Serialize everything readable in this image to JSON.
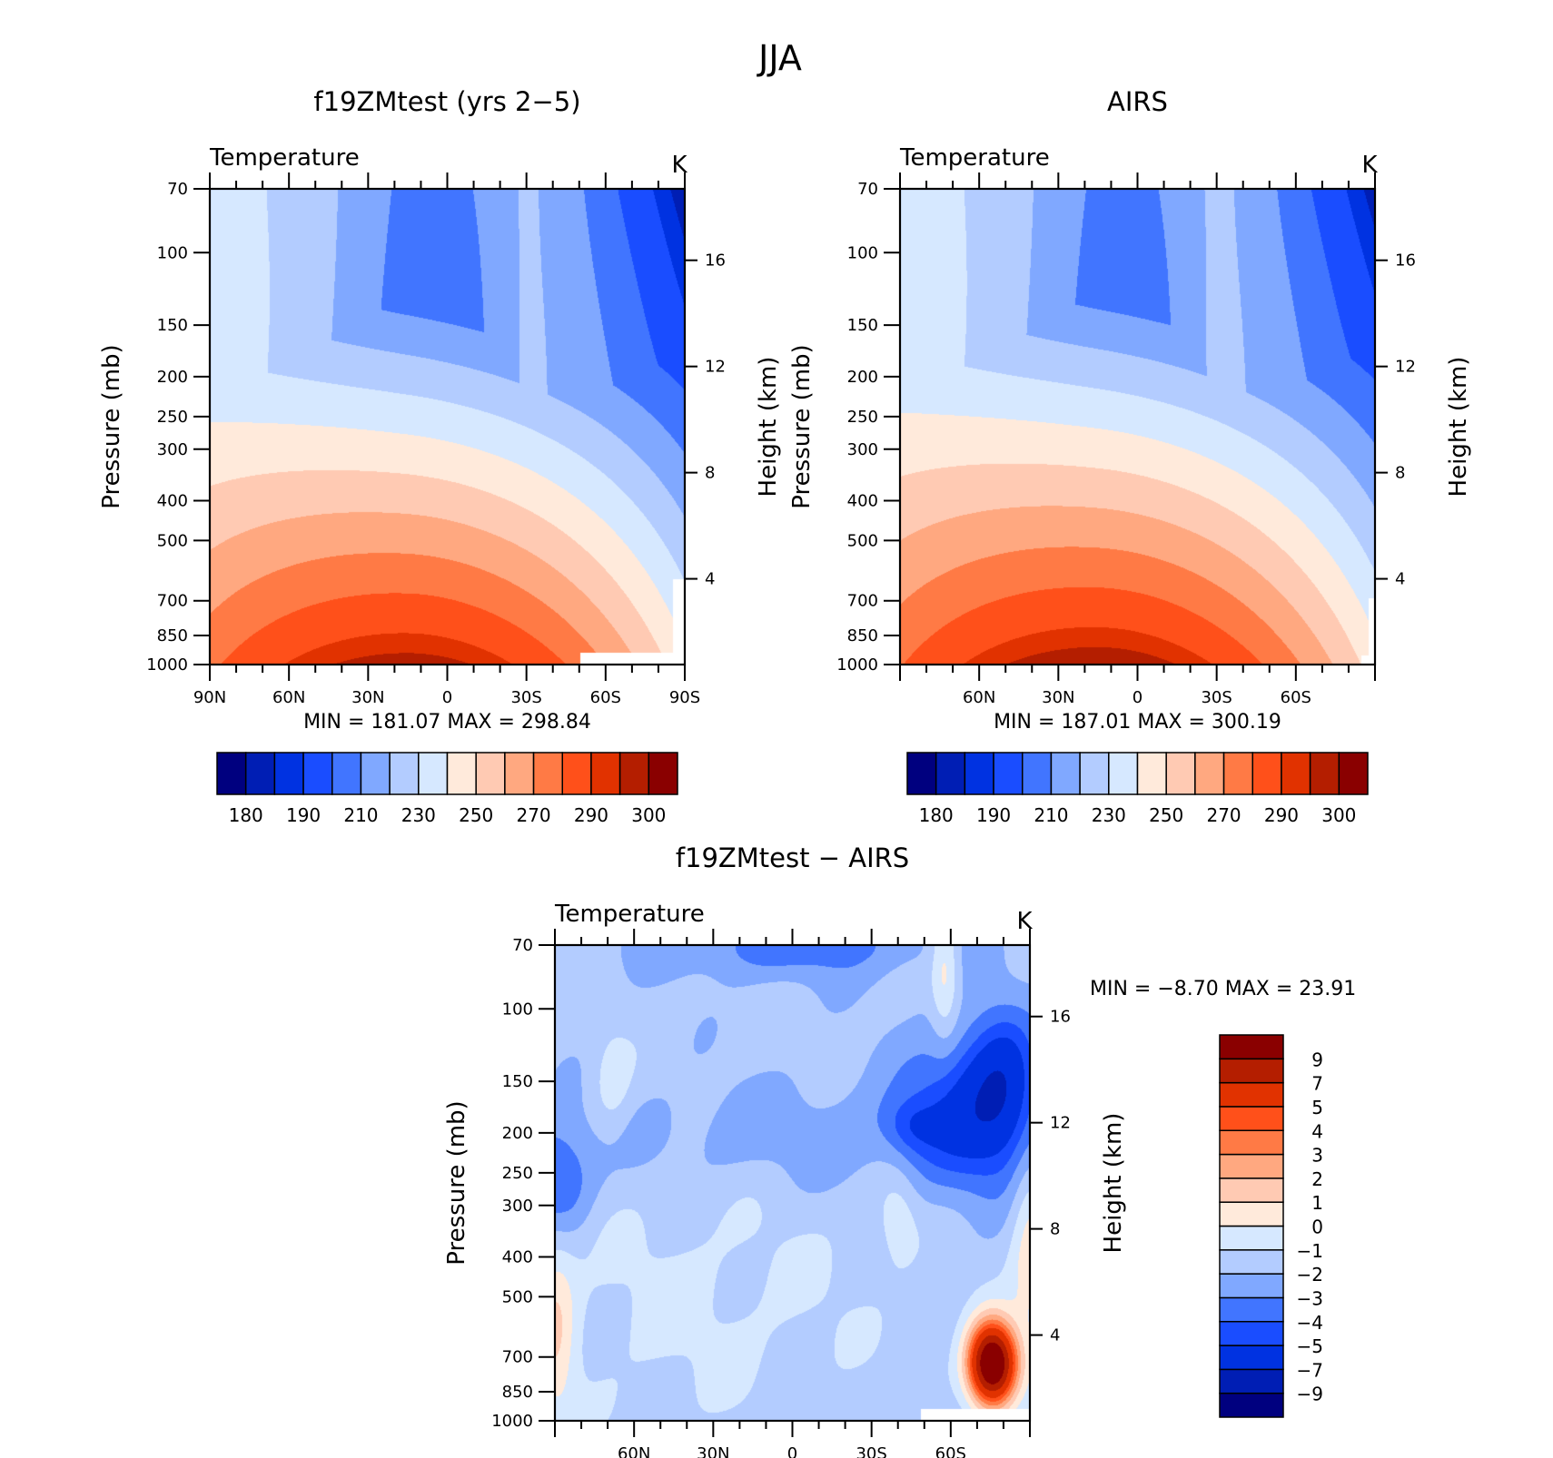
{
  "chart_data": {
    "type": "heatmap",
    "title": "JJA",
    "panels": [
      {
        "id": "model",
        "title": "f19ZMtest (yrs 2−5)",
        "left_string": "Temperature",
        "right_string": "K",
        "ylabel": "Pressure (mb)",
        "y2label": "Height (km)",
        "pressure_ticks": [
          70,
          100,
          150,
          200,
          250,
          300,
          400,
          500,
          700,
          850,
          1000
        ],
        "height_ticks": [
          4,
          8,
          12,
          16
        ],
        "lat_ticks": [
          "90N",
          "60N",
          "30N",
          "0",
          "30S",
          "60S",
          "90S"
        ],
        "stats": "MIN =  181.07   MAX =  298.84",
        "offset": 0
      },
      {
        "id": "obs",
        "title": "AIRS",
        "left_string": "Temperature",
        "right_string": "K",
        "ylabel": "Pressure (mb)",
        "y2label": "Height (km)",
        "pressure_ticks": [
          70,
          100,
          150,
          200,
          250,
          300,
          400,
          500,
          700,
          850,
          1000
        ],
        "height_ticks": [
          4,
          8,
          12,
          16
        ],
        "lat_ticks": [
          "",
          "60N",
          "30N",
          "0",
          "30S",
          "60S",
          ""
        ],
        "stats": "MIN =  187.01   MAX =  300.19",
        "offset": 1.5
      },
      {
        "id": "diff",
        "title": "f19ZMtest − AIRS",
        "left_string": "Temperature",
        "right_string": "K",
        "ylabel": "Pressure (mb)",
        "y2label": "Height (km)",
        "pressure_ticks": [
          70,
          100,
          150,
          200,
          250,
          300,
          400,
          500,
          700,
          850,
          1000
        ],
        "height_ticks": [
          4,
          8,
          12,
          16
        ],
        "lat_ticks": [
          "",
          "60N",
          "30N",
          "0",
          "30S",
          "60S",
          ""
        ],
        "stats": "MIN =   −8.70   MAX =   23.91"
      }
    ],
    "abs_levels": [
      180,
      185,
      190,
      200,
      210,
      220,
      230,
      240,
      250,
      260,
      270,
      280,
      290,
      295,
      300
    ],
    "abs_labels": [
      "180",
      "190",
      "210",
      "230",
      "250",
      "270",
      "290",
      "300"
    ],
    "diff_levels": [
      -9,
      -7,
      -5,
      -4,
      -3,
      -2,
      -1,
      0,
      1,
      2,
      3,
      4,
      5,
      7,
      9
    ],
    "diff_labels": [
      "−9",
      "−7",
      "−5",
      "−4",
      "−3",
      "−2",
      "−1",
      "0",
      "1",
      "2",
      "3",
      "4",
      "5",
      "7",
      "9"
    ],
    "colors": [
      "#00007f",
      "#001eb4",
      "#0032e1",
      "#1a4dff",
      "#4175ff",
      "#80a8ff",
      "#b3ccff",
      "#d6e8ff",
      "#ffeadb",
      "#ffcab3",
      "#ffa880",
      "#ff7a45",
      "#ff501a",
      "#e13200",
      "#b41e00",
      "#8a0000"
    ]
  }
}
